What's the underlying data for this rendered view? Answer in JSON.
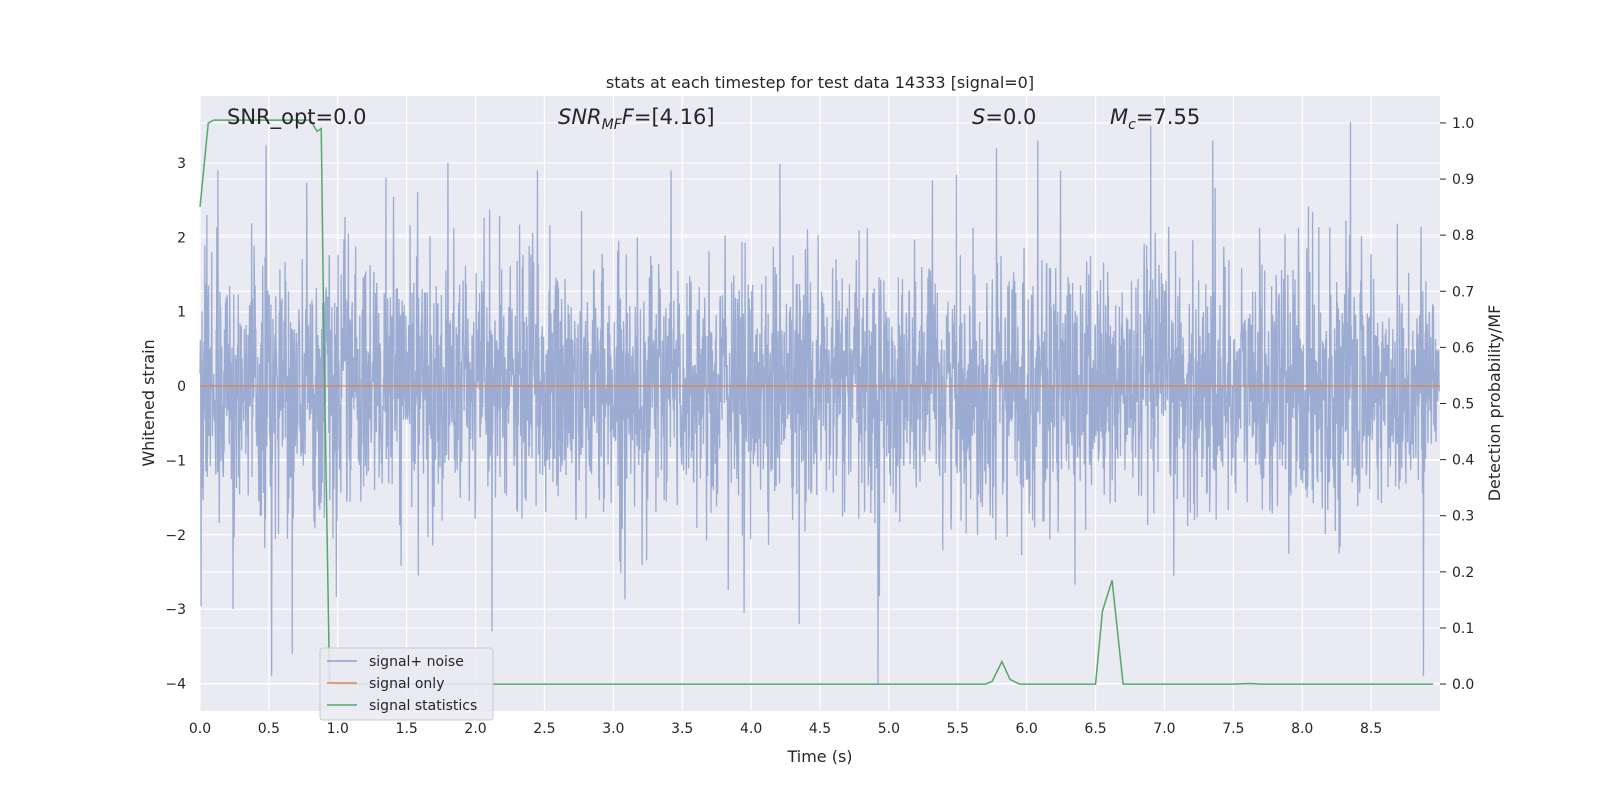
{
  "chart_data": {
    "type": "line",
    "title": "stats at each timestep for test data 14333 [signal=0]",
    "xlabel": "Time (s)",
    "ylabel": "Whitened strain",
    "y2label": "Detection probability/MF",
    "xlim": [
      0.0,
      9.0
    ],
    "ylim": [
      -4.37,
      3.9
    ],
    "y2lim": [
      -0.048,
      1.048
    ],
    "x_ticks": [
      0.0,
      0.5,
      1.0,
      1.5,
      2.0,
      2.5,
      3.0,
      3.5,
      4.0,
      4.5,
      5.0,
      5.5,
      6.0,
      6.5,
      7.0,
      7.5,
      8.0,
      8.5
    ],
    "x_tick_labels": [
      "0.0",
      "0.5",
      "1.0",
      "1.5",
      "2.0",
      "2.5",
      "3.0",
      "3.5",
      "4.0",
      "4.5",
      "5.0",
      "5.5",
      "6.0",
      "6.5",
      "7.0",
      "7.5",
      "8.0",
      "8.5"
    ],
    "y_ticks": [
      3,
      2,
      1,
      0,
      -1,
      -2,
      -3,
      -4
    ],
    "y_tick_labels": [
      "3",
      "2",
      "1",
      "0",
      "−1",
      "−2",
      "−3",
      "−4"
    ],
    "y2_ticks": [
      1.0,
      0.9,
      0.8,
      0.7,
      0.6,
      0.5,
      0.4,
      0.3,
      0.2,
      0.1,
      0.0
    ],
    "y2_tick_labels": [
      "1.0",
      "0.9",
      "0.8",
      "0.7",
      "0.6",
      "0.5",
      "0.4",
      "0.3",
      "0.2",
      "0.1",
      "0.0"
    ],
    "grid": true,
    "legend_position": "lower-left",
    "annotations": {
      "snr_opt": "SNR_opt=0.0",
      "snr_mf_main": "SNR",
      "snr_mf_sub": "MF",
      "snr_mf_val": "=[4.16]",
      "s_main": "S",
      "s_val": "=0.0",
      "mc_main": "M",
      "mc_sub": "c",
      "mc_val": "=7.55"
    },
    "series": [
      {
        "name": "signal+ noise",
        "axis": "left",
        "color": "#8da0cb",
        "noise_envelope": {
          "typical_range": [
            -2.0,
            2.0
          ],
          "extremes": [
            -4.0,
            3.55
          ]
        },
        "peaks": [
          {
            "x": 0.05,
            "y": 2.3
          },
          {
            "x": 0.13,
            "y": 2.9
          },
          {
            "x": 0.24,
            "y": -3.0
          },
          {
            "x": 0.52,
            "y": -3.9
          },
          {
            "x": 0.67,
            "y": -3.6
          },
          {
            "x": 1.35,
            "y": 2.8
          },
          {
            "x": 1.8,
            "y": 3.0
          },
          {
            "x": 2.12,
            "y": -3.3
          },
          {
            "x": 2.45,
            "y": 2.9
          },
          {
            "x": 3.42,
            "y": 2.9
          },
          {
            "x": 3.95,
            "y": -3.05
          },
          {
            "x": 4.35,
            "y": -3.2
          },
          {
            "x": 4.92,
            "y": -4.0
          },
          {
            "x": 5.78,
            "y": 3.2
          },
          {
            "x": 6.08,
            "y": 3.3
          },
          {
            "x": 6.9,
            "y": 3.5
          },
          {
            "x": 7.35,
            "y": 3.3
          },
          {
            "x": 8.35,
            "y": 3.55
          },
          {
            "x": 8.88,
            "y": -3.9
          }
        ]
      },
      {
        "name": "signal only",
        "axis": "left",
        "color": "#dd8452",
        "x": [
          0.0,
          9.0
        ],
        "y": [
          0.0,
          0.0
        ]
      },
      {
        "name": "signal statistics",
        "axis": "right",
        "color": "#55a868",
        "x": [
          0.0,
          0.06,
          0.1,
          0.2,
          0.3,
          0.4,
          0.5,
          0.6,
          0.7,
          0.8,
          0.85,
          0.88,
          0.9,
          0.94,
          1.0,
          1.5,
          2.0,
          3.0,
          4.0,
          5.0,
          5.7,
          5.75,
          5.82,
          5.88,
          5.95,
          6.0,
          6.5,
          6.55,
          6.62,
          6.7,
          6.8,
          7.5,
          7.62,
          7.7,
          8.0,
          8.5,
          8.95
        ],
        "y": [
          0.85,
          1.0,
          1.005,
          1.005,
          1.005,
          1.005,
          1.005,
          1.005,
          1.005,
          1.005,
          0.985,
          0.99,
          0.6,
          0.005,
          0.0,
          0.0,
          0.0,
          0.0,
          0.0,
          0.0,
          0.0,
          0.005,
          0.04,
          0.008,
          0.0,
          0.0,
          0.0,
          0.13,
          0.185,
          0.0,
          0.0,
          0.0,
          0.001,
          0.0,
          0.0,
          0.0,
          0.0
        ]
      }
    ]
  }
}
